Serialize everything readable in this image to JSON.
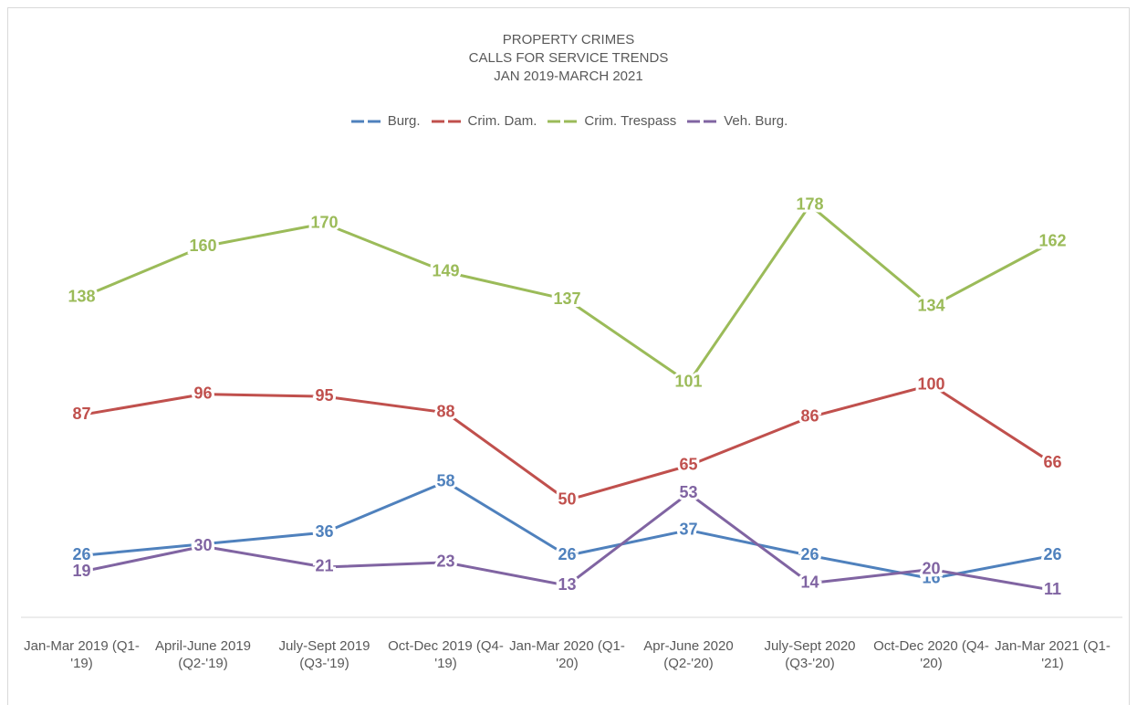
{
  "chart_data": {
    "type": "line",
    "title": "PROPERTY CRIMES\nCALLS FOR SERVICE TRENDS\nJAN 2019-MARCH 2021",
    "categories": [
      "Jan-Mar 2019 (Q1-'19)",
      "April-June 2019 (Q2-'19)",
      "July-Sept 2019 (Q3-'19)",
      "Oct-Dec 2019 (Q4-'19)",
      "Jan-Mar 2020 (Q1-'20)",
      "Apr-June 2020 (Q2-'20)",
      "July-Sept 2020 (Q3-'20)",
      "Oct-Dec 2020 (Q4-'20)",
      "Jan-Mar 2021 (Q1-'21)"
    ],
    "series": [
      {
        "name": "Burg.",
        "color": "#4f81bd",
        "values": [
          26,
          31,
          36,
          58,
          26,
          37,
          26,
          16,
          26
        ]
      },
      {
        "name": "Crim. Dam.",
        "color": "#c0504d",
        "values": [
          87,
          96,
          95,
          88,
          50,
          65,
          86,
          100,
          66
        ]
      },
      {
        "name": "Crim. Trespass",
        "color": "#9bbb59",
        "values": [
          138,
          160,
          170,
          149,
          137,
          101,
          178,
          134,
          162
        ]
      },
      {
        "name": "Veh. Burg.",
        "color": "#8064a2",
        "values": [
          19,
          30,
          21,
          23,
          13,
          53,
          14,
          20,
          11
        ]
      }
    ],
    "ylim": [
      0,
      200
    ],
    "legend": "top"
  }
}
